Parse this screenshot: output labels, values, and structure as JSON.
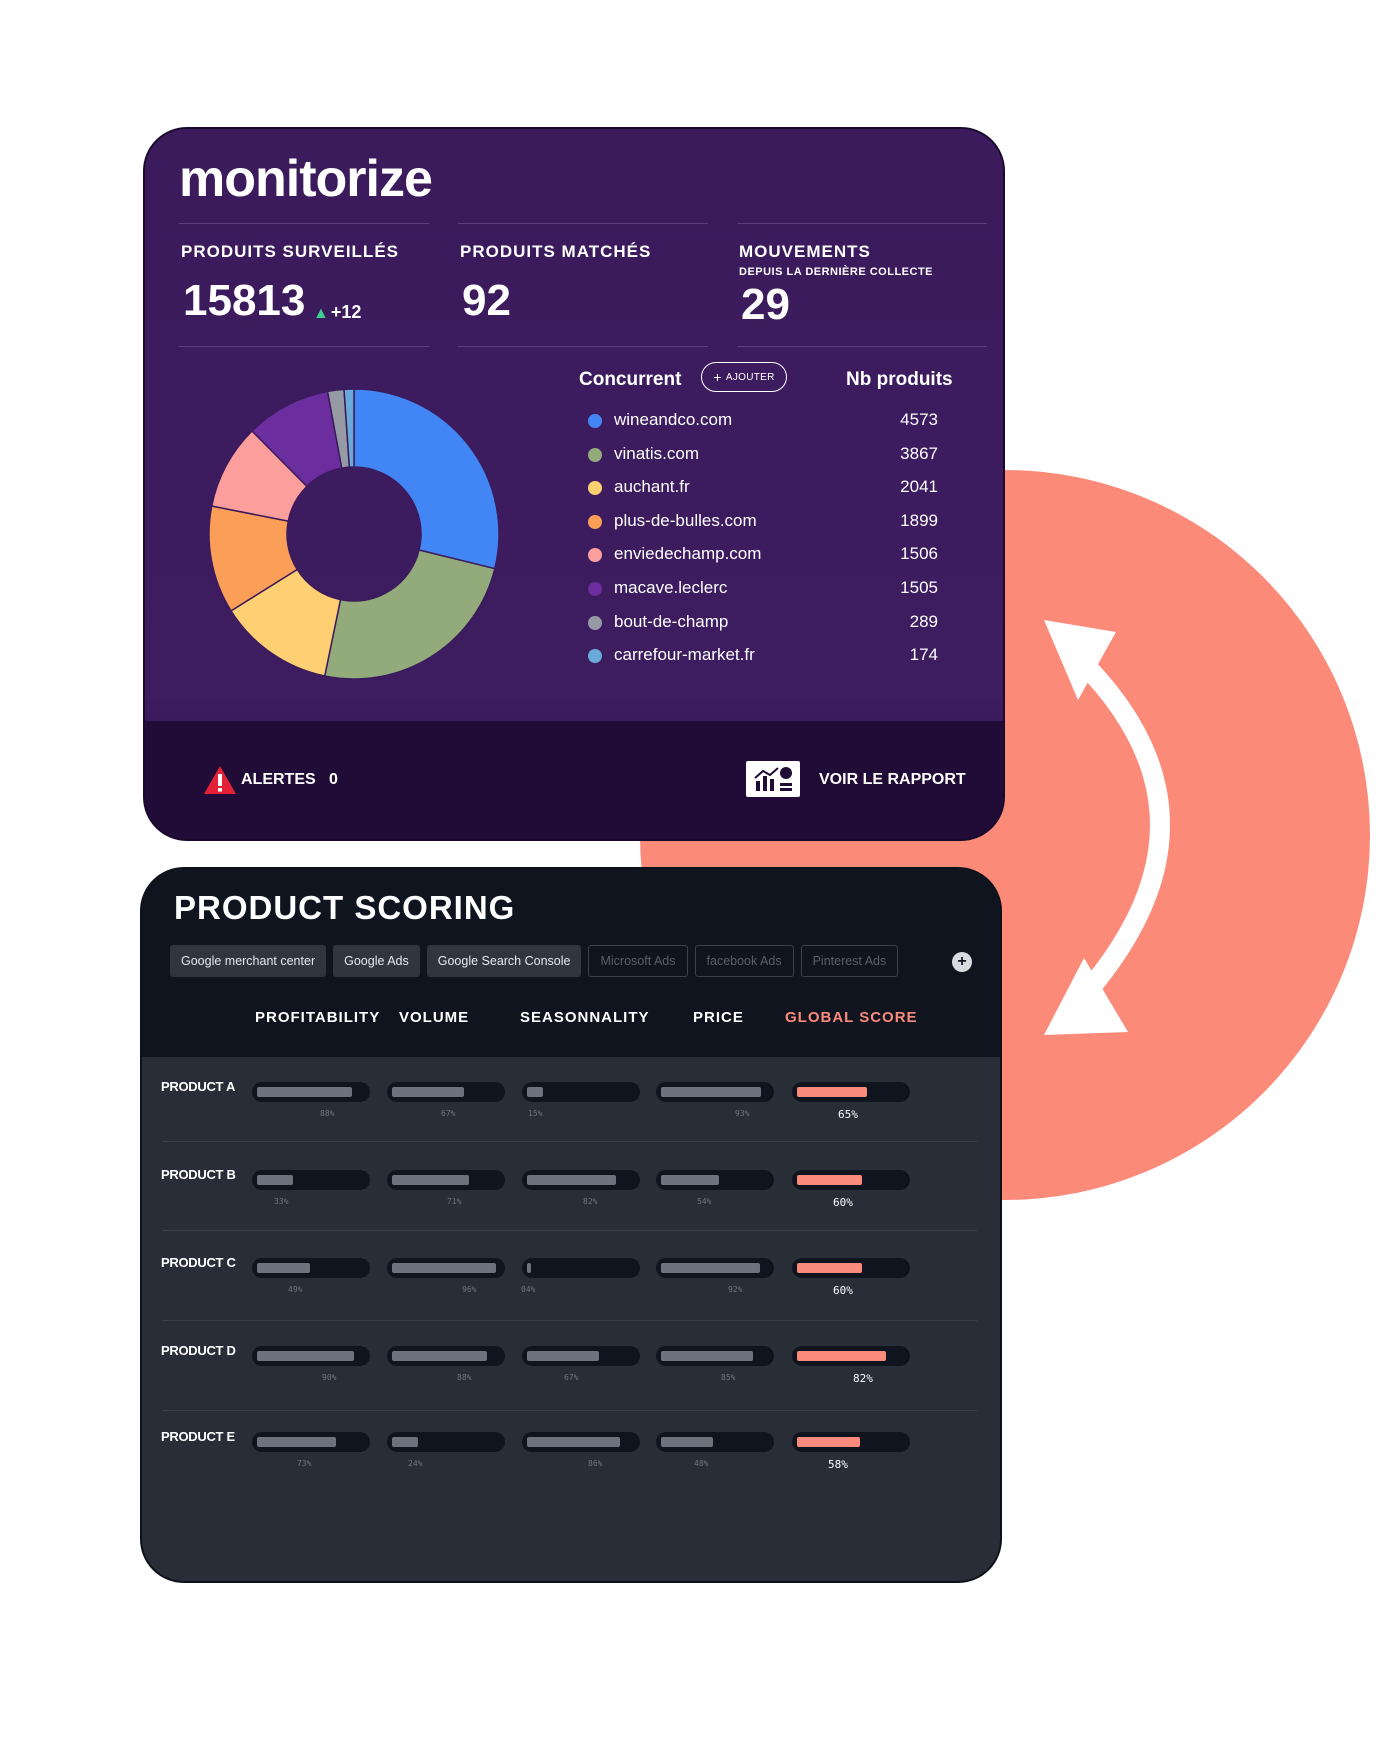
{
  "monitorize": {
    "logo": "monitorize",
    "stats": [
      {
        "label": "PRODUITS SURVEILLÉS",
        "sub": "",
        "value": "15813",
        "delta": "+12"
      },
      {
        "label": "PRODUITS MATCHÉS",
        "sub": "",
        "value": "92",
        "delta": ""
      },
      {
        "label": "MOUVEMENTS",
        "sub": "DEPUIS LA DERNIÈRE COLLECTE",
        "value": "29",
        "delta": ""
      }
    ],
    "legend_header_left": "Concurrent",
    "add_button_label": "AJOUTER",
    "legend_header_right": "Nb produits",
    "footer": {
      "alerts_label": "ALERTES",
      "alerts_count": "0",
      "report_label": "VOIR LE RAPPORT"
    }
  },
  "chart_data": {
    "type": "pie",
    "categories": [
      "wineandco.com",
      "vinatis.com",
      "auchant.fr",
      "plus-de-bulles.com",
      "enviedechamp.com",
      "macave.leclerc",
      "bout-de-champ",
      "carrefour-market.fr"
    ],
    "values": [
      4573,
      3867,
      2041,
      1899,
      1506,
      1505,
      289,
      174
    ],
    "colors": [
      "#4285f4",
      "#93ab7a",
      "#fecf73",
      "#fb9e57",
      "#fc9e9c",
      "#6c2d9f",
      "#959aa4",
      "#6aaadb"
    ]
  },
  "scoring": {
    "title": "PRODUCT SCORING",
    "tabs": [
      {
        "label": "Google merchant center",
        "active": true
      },
      {
        "label": "Google Ads",
        "active": true
      },
      {
        "label": "Google Search Console",
        "active": true
      },
      {
        "label": "Microsoft Ads",
        "active": false
      },
      {
        "label": "facebook Ads",
        "active": false
      },
      {
        "label": "Pinterest Ads",
        "active": false
      }
    ],
    "add_tab": "+",
    "columns": [
      "PROFITABILITY",
      "VOLUME",
      "SEASONNALITY",
      "PRICE",
      "GLOBAL SCORE"
    ],
    "products": [
      {
        "name": "PRODUCT A",
        "scores": [
          [
            "88%",
            0.88
          ],
          [
            "67%",
            0.67
          ],
          [
            "15%",
            0.15
          ],
          [
            "93%",
            0.93
          ]
        ],
        "global": [
          "65%",
          0.65
        ]
      },
      {
        "name": "PRODUCT B",
        "scores": [
          [
            "33%",
            0.33
          ],
          [
            "71%",
            0.71
          ],
          [
            "82%",
            0.82
          ],
          [
            "54%",
            0.54
          ]
        ],
        "global": [
          "60%",
          0.6
        ]
      },
      {
        "name": "PRODUCT C",
        "scores": [
          [
            "49%",
            0.49
          ],
          [
            "96%",
            0.96
          ],
          [
            "04%",
            0.04
          ],
          [
            "92%",
            0.92
          ]
        ],
        "global": [
          "60%",
          0.6
        ]
      },
      {
        "name": "PRODUCT D",
        "scores": [
          [
            "90%",
            0.9
          ],
          [
            "88%",
            0.88
          ],
          [
            "67%",
            0.67
          ],
          [
            "85%",
            0.85
          ]
        ],
        "global": [
          "82%",
          0.82
        ]
      },
      {
        "name": "PRODUCT E",
        "scores": [
          [
            "73%",
            0.73
          ],
          [
            "24%",
            0.24
          ],
          [
            "86%",
            0.86
          ],
          [
            "48%",
            0.48
          ]
        ],
        "global": [
          "58%",
          0.58
        ]
      }
    ]
  }
}
